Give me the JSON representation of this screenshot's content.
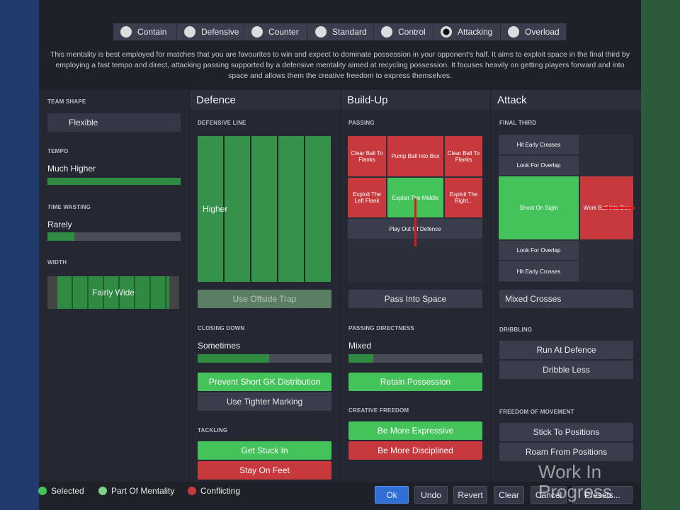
{
  "mentalities": [
    "Contain",
    "Defensive",
    "Counter",
    "Standard",
    "Control",
    "Attacking",
    "Overload"
  ],
  "description": "This mentality is best employed for matches that you are favourites to win and expect to dominate possession in your opponent's half. It aims to exploit space in the final third by employing a fast tempo and direct, attacking passing supported by a defensive mentality aimed at recycling possession. It focuses heavily on getting players forward and into space and allows them the creative freedom to express themselves.",
  "team": {
    "shape_label": "TEAM SHAPE",
    "shape": "Flexible",
    "tempo_label": "TEMPO",
    "tempo": "Much Higher",
    "time_wasting_label": "TIME WASTING",
    "time_wasting": "Rarely",
    "width_label": "WIDTH",
    "width": "Fairly Wide"
  },
  "defence": {
    "title": "Defence",
    "line_label": "DEFENSIVE LINE",
    "line": "Higher",
    "offside": "Use Offside Trap",
    "closing_label": "CLOSING DOWN",
    "closing": "Sometimes",
    "buttons": [
      "Prevent Short GK Distribution",
      "Use Tighter Marking"
    ],
    "tackling_label": "TACKLING",
    "tackling": [
      "Get Stuck In",
      "Stay On Feet"
    ]
  },
  "buildup": {
    "title": "Build-Up",
    "passing_label": "PASSING",
    "grid": [
      "Clear Ball To Flanks",
      "Pump Ball Into Box",
      "Clear Ball To Flanks",
      "Exploit The Left Flank",
      "Exploit The Middle",
      "Exploit The Right...",
      "Play Out Of Defence"
    ],
    "pass_space": "Pass Into Space",
    "directness_label": "PASSING DIRECTNESS",
    "directness": "Mixed",
    "retain": "Retain Possession",
    "creative_label": "CREATIVE FREEDOM",
    "creative": [
      "Be More Expressive",
      "Be More Disciplined"
    ]
  },
  "attack": {
    "title": "Attack",
    "final_third_label": "FINAL THIRD",
    "grid": [
      "Hit Early Crosses",
      "Look For Overlap",
      "Shoot On Sight",
      "Work Ball Into Box",
      "Look For Overlap",
      "Hit Early Crosses"
    ],
    "crosses": "Mixed Crosses",
    "dribbling_label": "DRIBBLING",
    "dribbling": [
      "Run At Defence",
      "Dribble Less"
    ],
    "movement_label": "FREEDOM OF MOVEMENT",
    "movement": [
      "Stick To Positions",
      "Roam From Positions"
    ]
  },
  "legend": [
    "Selected",
    "Part Of Mentality",
    "Conflicting"
  ],
  "buttons": [
    "Ok",
    "Undo",
    "Revert",
    "Clear",
    "Cancel",
    "Presets..."
  ],
  "watermark": "Work In Progress"
}
